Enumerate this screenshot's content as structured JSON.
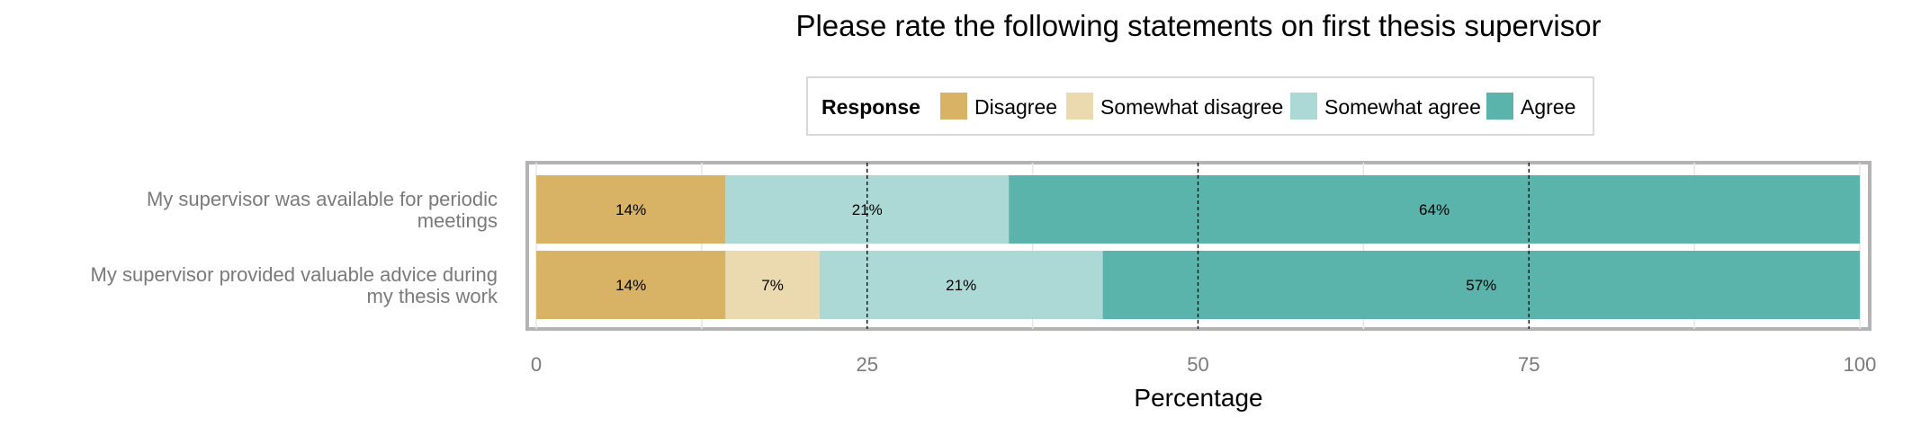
{
  "chart_data": {
    "type": "bar",
    "orientation": "horizontal",
    "stacked": true,
    "title": "Please rate the following statements on first thesis supervisor",
    "xlabel": "Percentage",
    "ylabel": "",
    "xlim": [
      0,
      100
    ],
    "x_ticks": [
      "0",
      "25",
      "50",
      "75",
      "100"
    ],
    "legend": {
      "title": "Response",
      "position": "top",
      "entries": [
        "Disagree",
        "Somewhat disagree",
        "Somewhat agree",
        "Agree"
      ]
    },
    "categories": [
      "My supervisor was available for periodic meetings",
      "My supervisor provided valuable advice during my thesis work"
    ],
    "series": [
      {
        "name": "Disagree",
        "color": "#d8b365",
        "values": [
          14.3,
          14.3
        ],
        "labels": [
          "14%",
          "14%"
        ]
      },
      {
        "name": "Somewhat disagree",
        "color": "#ebd9b0",
        "values": [
          0,
          7.1
        ],
        "labels": [
          "",
          "7%"
        ]
      },
      {
        "name": "Somewhat agree",
        "color": "#acd9d6",
        "values": [
          21.4,
          21.4
        ],
        "labels": [
          "21%",
          "21%"
        ]
      },
      {
        "name": "Agree",
        "color": "#5ab4ac",
        "values": [
          64.3,
          57.2
        ],
        "labels": [
          "64%",
          "57%"
        ]
      }
    ],
    "grid": true,
    "reference_lines": [
      25,
      50,
      75
    ]
  }
}
